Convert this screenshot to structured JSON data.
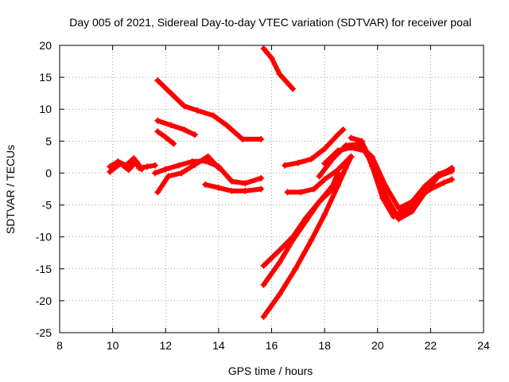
{
  "chart_data": {
    "type": "scatter",
    "title": "Day 005 of 2021, Sidereal Day-to-day VTEC variation (SDTVAR) for receiver poal",
    "xlabel": "GPS time / hours",
    "ylabel": "SDTVAR / TECUs",
    "xlim": [
      8,
      24
    ],
    "ylim": [
      -25,
      20
    ],
    "xticks": [
      8,
      10,
      12,
      14,
      16,
      18,
      20,
      22,
      24
    ],
    "yticks": [
      -25,
      -20,
      -15,
      -10,
      -5,
      0,
      5,
      10,
      15,
      20
    ],
    "grid": true,
    "marker": "+",
    "color": "#ff0000",
    "series": [
      {
        "name": "s1",
        "x": [
          9.9,
          10.2,
          10.5,
          10.8,
          11.0,
          11.3,
          11.6
        ],
        "y": [
          1.0,
          1.8,
          1.2,
          2.3,
          0.8,
          1.0,
          1.2
        ]
      },
      {
        "name": "s2",
        "x": [
          9.9,
          10.3,
          10.6,
          10.9,
          11.1
        ],
        "y": [
          0.2,
          1.5,
          0.5,
          1.8,
          0.6
        ]
      },
      {
        "name": "s3",
        "x": [
          11.7,
          12.2,
          12.7,
          13.2,
          13.8,
          14.3,
          14.9,
          15.6
        ],
        "y": [
          14.5,
          12.5,
          10.5,
          9.8,
          9.0,
          7.5,
          5.3,
          5.3
        ]
      },
      {
        "name": "s4",
        "x": [
          11.7,
          12.2,
          12.7,
          13.1
        ],
        "y": [
          8.2,
          7.5,
          6.8,
          6.0
        ]
      },
      {
        "name": "s5",
        "x": [
          11.7,
          12.0,
          12.3
        ],
        "y": [
          6.5,
          5.6,
          4.6
        ]
      },
      {
        "name": "s6",
        "x": [
          11.6,
          12.0,
          12.5,
          13.0,
          13.5,
          14.0,
          14.5,
          15.0,
          15.6
        ],
        "y": [
          0.0,
          0.6,
          1.2,
          1.8,
          1.9,
          1.0,
          -1.3,
          -1.6,
          -0.8
        ]
      },
      {
        "name": "s7",
        "x": [
          11.7,
          12.1,
          12.6,
          13.1,
          13.6,
          14.0
        ],
        "y": [
          -3.0,
          -0.5,
          0.0,
          1.3,
          2.6,
          0.8
        ]
      },
      {
        "name": "s8",
        "x": [
          13.5,
          14.0,
          14.5,
          15.0,
          15.6
        ],
        "y": [
          -1.8,
          -2.3,
          -2.8,
          -2.8,
          -2.5
        ]
      },
      {
        "name": "s9",
        "x": [
          15.7,
          16.0,
          16.3,
          16.8
        ],
        "y": [
          19.5,
          18.0,
          15.5,
          13.2
        ]
      },
      {
        "name": "s10",
        "x": [
          16.5,
          17.0,
          17.5,
          18.0,
          18.5,
          18.7
        ],
        "y": [
          1.2,
          1.6,
          2.2,
          3.8,
          6.0,
          6.8
        ]
      },
      {
        "name": "s11",
        "x": [
          16.6,
          17.1,
          17.6,
          18.0,
          18.5,
          19.0
        ],
        "y": [
          -3.0,
          -3.0,
          -2.5,
          -1.0,
          0.5,
          2.6
        ]
      },
      {
        "name": "s12",
        "x": [
          15.7,
          16.2,
          16.8,
          17.3,
          17.8,
          18.3,
          18.7,
          19.0
        ],
        "y": [
          -14.5,
          -12.5,
          -10.0,
          -7.0,
          -4.5,
          -2.5,
          0.0,
          2.5
        ]
      },
      {
        "name": "s13",
        "x": [
          15.7,
          16.3,
          16.8,
          17.3,
          17.8,
          18.3,
          18.5
        ],
        "y": [
          -17.5,
          -14.0,
          -10.5,
          -7.5,
          -4.5,
          -2.0,
          0.0
        ]
      },
      {
        "name": "s14",
        "x": [
          15.7,
          16.3,
          16.9,
          17.5,
          18.0,
          18.5,
          18.8
        ],
        "y": [
          -22.5,
          -19.0,
          -15.0,
          -10.5,
          -6.5,
          -2.0,
          0.8
        ]
      },
      {
        "name": "s15",
        "x": [
          17.8,
          18.3,
          18.8,
          19.2,
          19.5,
          19.8,
          20.2,
          20.7,
          21.2,
          21.7,
          22.2,
          22.8
        ],
        "y": [
          -0.5,
          2.2,
          4.3,
          4.5,
          4.0,
          1.5,
          -3.0,
          -6.5,
          -5.5,
          -3.0,
          -0.8,
          0.8
        ]
      },
      {
        "name": "s16",
        "x": [
          18.0,
          18.5,
          19.0,
          19.5,
          19.8,
          20.3,
          20.8,
          21.3,
          21.8,
          22.3,
          22.8
        ],
        "y": [
          1.5,
          3.5,
          4.0,
          3.5,
          1.5,
          -3.5,
          -7.2,
          -6.0,
          -3.0,
          -0.5,
          0.3
        ]
      },
      {
        "name": "s17",
        "x": [
          19.0,
          19.4,
          19.8,
          20.2,
          20.6,
          21.0,
          21.5,
          22.0,
          22.5,
          22.8
        ],
        "y": [
          5.5,
          5.0,
          1.0,
          -4.0,
          -6.8,
          -6.2,
          -4.0,
          -2.5,
          -1.5,
          -1.0
        ]
      },
      {
        "name": "s18",
        "x": [
          19.3,
          19.8,
          20.3,
          20.8,
          21.3,
          21.8,
          22.3,
          22.8
        ],
        "y": [
          4.5,
          2.5,
          -2.0,
          -5.5,
          -4.5,
          -2.0,
          -0.2,
          0.6
        ]
      }
    ]
  }
}
